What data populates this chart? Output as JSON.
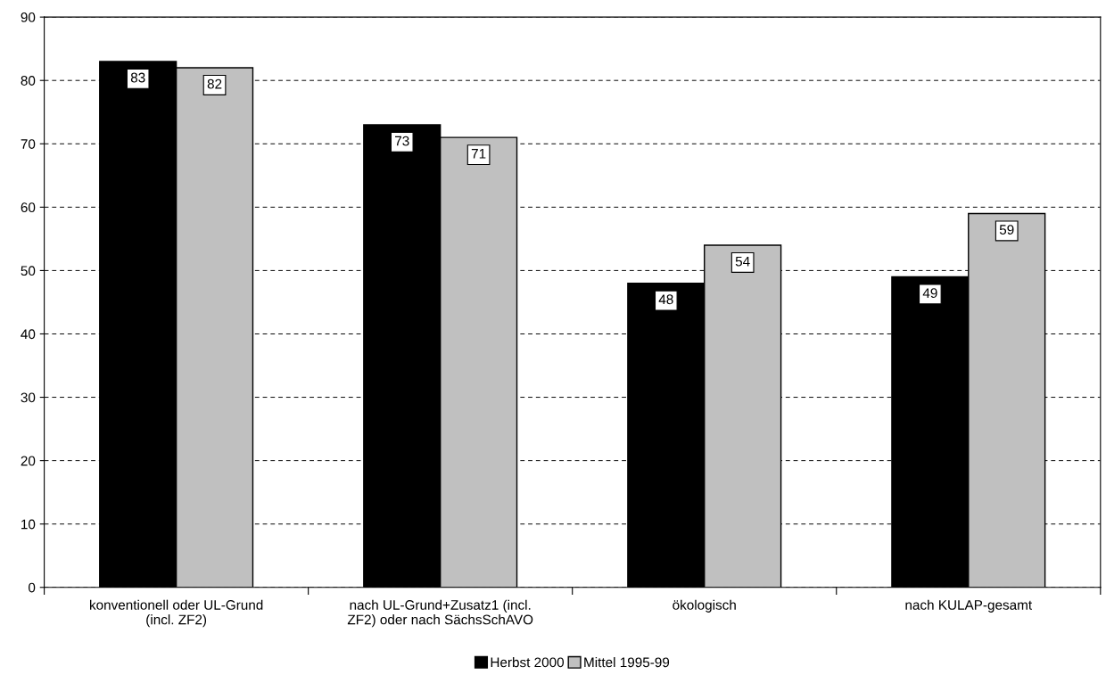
{
  "chart_data": {
    "type": "bar",
    "categories": [
      "konventionell oder UL-Grund\n(incl. ZF2)",
      "nach UL-Grund+Zusatz1 (incl.\nZF2) oder nach SächsSchAVO",
      "ökologisch",
      "nach KULAP-gesamt"
    ],
    "series": [
      {
        "name": "Herbst 2000",
        "color": "#000000",
        "values": [
          83,
          73,
          48,
          49
        ]
      },
      {
        "name": "Mittel 1995-99",
        "color": "#c0c0c0",
        "values": [
          82,
          71,
          54,
          59
        ]
      }
    ],
    "ylim": [
      0,
      90
    ],
    "yticks": [
      0,
      10,
      20,
      30,
      40,
      50,
      60,
      70,
      80,
      90
    ],
    "grid": "y",
    "legend": "bottom",
    "data_labels": true
  }
}
